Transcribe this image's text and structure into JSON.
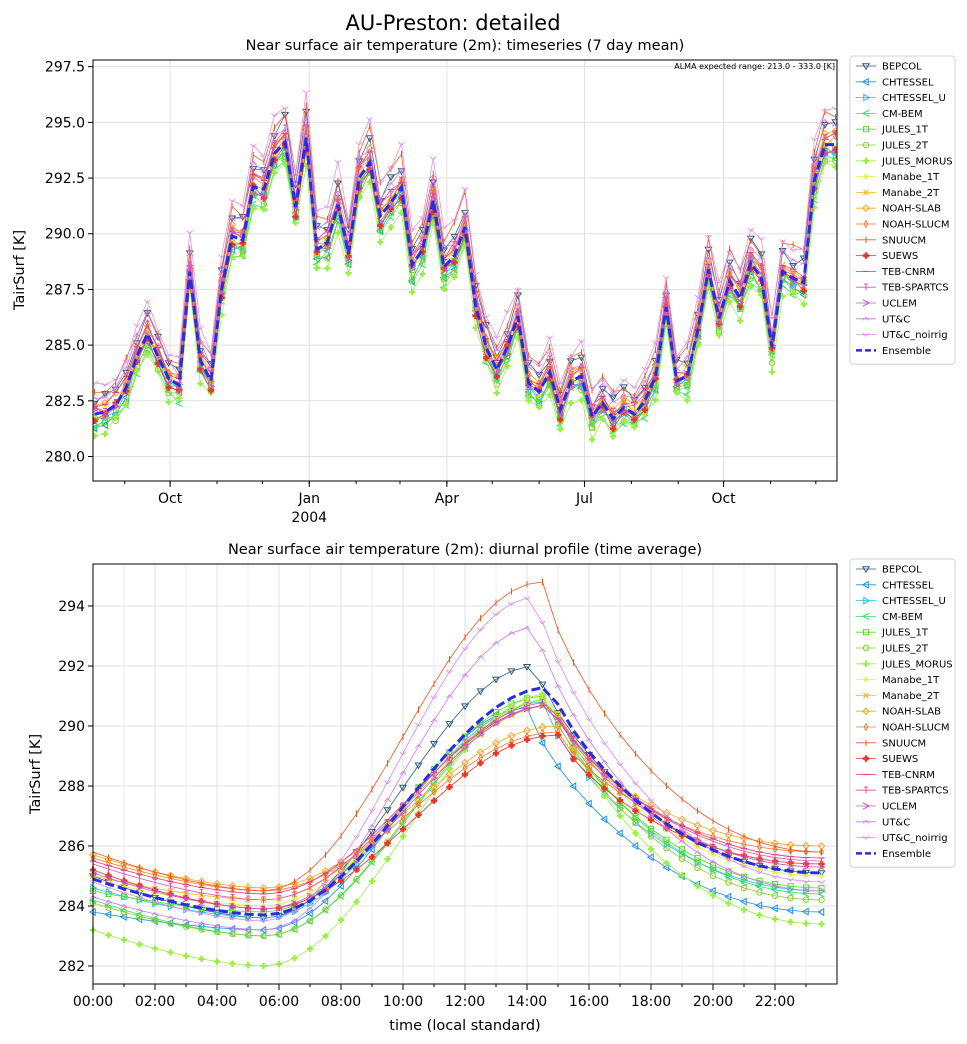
{
  "figure": {
    "suptitle": "AU-Preston: detailed",
    "annotation": "ALMA expected range: 213.0 - 333.0 [K]"
  },
  "models": [
    {
      "name": "BEPCOL",
      "color": "#2d5a7e",
      "marker": "tri_down"
    },
    {
      "name": "CHTESSEL",
      "color": "#1f8fe6",
      "marker": "tri_left"
    },
    {
      "name": "CHTESSEL_U",
      "color": "#22c0e8",
      "marker": "tri_right"
    },
    {
      "name": "CM-BEM",
      "color": "#33dd66",
      "marker": "lt"
    },
    {
      "name": "JULES_1T",
      "color": "#55dd22",
      "marker": "square"
    },
    {
      "name": "JULES_2T",
      "color": "#88cc33",
      "marker": "circle"
    },
    {
      "name": "JULES_MORUS",
      "color": "#99ee44",
      "marker": "pluscircle"
    },
    {
      "name": "Manabe_1T",
      "color": "#ddee44",
      "marker": "star"
    },
    {
      "name": "Manabe_2T",
      "color": "#f2b521",
      "marker": "x"
    },
    {
      "name": "NOAH-SLAB",
      "color": "#f5a623",
      "marker": "diamond"
    },
    {
      "name": "NOAH-SLUCM",
      "color": "#ef7d2e",
      "marker": "thindiamond"
    },
    {
      "name": "SNUUCM",
      "color": "#ee5522",
      "marker": "vline"
    },
    {
      "name": "SUEWS",
      "color": "#ee3322",
      "marker": "plusfilled"
    },
    {
      "name": "TEB-CNRM",
      "color": "#e8336e",
      "marker": "hline"
    },
    {
      "name": "TEB-SPARTCS",
      "color": "#d94fb0",
      "marker": "tick"
    },
    {
      "name": "UCLEM",
      "color": "#c455d6",
      "marker": "gt"
    },
    {
      "name": "UT&C",
      "color": "#cc77ee",
      "marker": "caret"
    },
    {
      "name": "UT&C_noirrig",
      "color": "#dd88ee",
      "marker": "caretdown"
    },
    {
      "name": "Ensemble",
      "color": "#2b2be0",
      "marker": "none"
    }
  ],
  "chart_data": [
    {
      "type": "line",
      "title": "Near surface air temperature (2m): timeseries (7 day mean)",
      "xlabel": "",
      "ylabel": "TairSurf [K]",
      "x_is_time": true,
      "x_range": [
        "2003-08-11",
        "2004-12-15"
      ],
      "x_major_ticks": [
        [
          "2003-10-01",
          "Oct"
        ],
        [
          "2004-01-01",
          "Jan"
        ],
        [
          "2004-04-01",
          "Apr"
        ],
        [
          "2004-07-01",
          "Jul"
        ],
        [
          "2004-10-01",
          "Oct"
        ]
      ],
      "x_year_label": {
        "date": "2004-01-01",
        "text": "2004"
      },
      "ylim": [
        278.9,
        297.8
      ],
      "yticks": [
        "280.0",
        "282.5",
        "285.0",
        "287.5",
        "290.0",
        "292.5",
        "295.0",
        "297.5"
      ],
      "grid": true,
      "legend": "right outside",
      "x": [
        "2003-08-12",
        "2003-08-19",
        "2003-08-26",
        "2003-09-02",
        "2003-09-09",
        "2003-09-16",
        "2003-09-23",
        "2003-09-30",
        "2003-10-07",
        "2003-10-14",
        "2003-10-21",
        "2003-10-28",
        "2003-11-04",
        "2003-11-11",
        "2003-11-18",
        "2003-11-25",
        "2003-12-02",
        "2003-12-09",
        "2003-12-16",
        "2003-12-23",
        "2003-12-30",
        "2004-01-06",
        "2004-01-13",
        "2004-01-20",
        "2004-01-27",
        "2004-02-03",
        "2004-02-10",
        "2004-02-17",
        "2004-02-24",
        "2004-03-02",
        "2004-03-09",
        "2004-03-16",
        "2004-03-23",
        "2004-03-30",
        "2004-04-06",
        "2004-04-13",
        "2004-04-20",
        "2004-04-27",
        "2004-05-04",
        "2004-05-11",
        "2004-05-18",
        "2004-05-25",
        "2004-06-01",
        "2004-06-08",
        "2004-06-15",
        "2004-06-22",
        "2004-06-29",
        "2004-07-06",
        "2004-07-13",
        "2004-07-20",
        "2004-07-27",
        "2004-08-03",
        "2004-08-10",
        "2004-08-17",
        "2004-08-24",
        "2004-08-31",
        "2004-09-07",
        "2004-09-14",
        "2004-09-21",
        "2004-09-28",
        "2004-10-05",
        "2004-10-12",
        "2004-10-19",
        "2004-10-26",
        "2004-11-02",
        "2004-11-09",
        "2004-11-16",
        "2004-11-23",
        "2004-11-30",
        "2004-12-07",
        "2004-12-14"
      ],
      "ensemble": [
        281.9,
        282.0,
        282.3,
        283.1,
        284.5,
        285.5,
        284.5,
        283.5,
        283.2,
        288.3,
        284.3,
        283.4,
        287.5,
        289.9,
        289.7,
        292.1,
        292.0,
        293.6,
        294.1,
        291.2,
        294.3,
        289.3,
        289.6,
        291.3,
        289.1,
        292.5,
        293.2,
        290.8,
        291.4,
        292.1,
        288.6,
        289.3,
        291.5,
        288.5,
        289.0,
        290.3,
        286.8,
        284.9,
        283.9,
        284.9,
        286.3,
        283.3,
        282.9,
        283.8,
        282.1,
        283.4,
        283.6,
        281.8,
        282.4,
        281.7,
        282.2,
        281.9,
        282.5,
        283.6,
        286.7,
        283.4,
        283.6,
        285.7,
        288.4,
        286.2,
        287.9,
        287.1,
        288.7,
        288.0,
        284.9,
        288.3,
        288.0,
        287.8,
        292.4,
        294.0,
        294.0
      ],
      "ensemble_note": "individual model curves follow the ensemble with per-model offsets",
      "series": [
        {
          "name": "BEPCOL",
          "offset": 0.8
        },
        {
          "name": "CHTESSEL",
          "offset": -0.4
        },
        {
          "name": "CHTESSEL_U",
          "offset": -0.2
        },
        {
          "name": "CM-BEM",
          "offset": -0.6
        },
        {
          "name": "JULES_1T",
          "offset": -0.3
        },
        {
          "name": "JULES_2T",
          "offset": -0.5
        },
        {
          "name": "JULES_MORUS",
          "offset": -0.9
        },
        {
          "name": "Manabe_1T",
          "offset": 0.0
        },
        {
          "name": "Manabe_2T",
          "offset": 0.1
        },
        {
          "name": "NOAH-SLAB",
          "offset": 0.3
        },
        {
          "name": "NOAH-SLUCM",
          "offset": 0.2
        },
        {
          "name": "SNUUCM",
          "offset": 1.2
        },
        {
          "name": "SUEWS",
          "offset": -0.2
        },
        {
          "name": "TEB-CNRM",
          "offset": 0.4
        },
        {
          "name": "TEB-SPARTCS",
          "offset": 0.3
        },
        {
          "name": "UCLEM",
          "offset": -0.1
        },
        {
          "name": "UT&C",
          "offset": 0.7
        },
        {
          "name": "UT&C_noirrig",
          "offset": 1.5
        }
      ]
    },
    {
      "type": "line",
      "title": "Near surface air temperature (2m): diurnal profile (time average)",
      "xlabel": "time (local standard)",
      "ylabel": "TairSurf [K]",
      "xlim": [
        0,
        24
      ],
      "xticks": [
        "00:00",
        "02:00",
        "04:00",
        "06:00",
        "08:00",
        "10:00",
        "12:00",
        "14:00",
        "16:00",
        "18:00",
        "20:00",
        "22:00"
      ],
      "ylim": [
        281.4,
        295.4
      ],
      "yticks": [
        "282",
        "284",
        "286",
        "288",
        "290",
        "292",
        "294"
      ],
      "grid": true,
      "legend": "right outside",
      "x_hours_step": 0.5,
      "series": [
        {
          "name": "BEPCOL",
          "start": 285.0,
          "min": 283.6,
          "max": 292.0,
          "peak_hour": 14.3,
          "end": 285.1
        },
        {
          "name": "CHTESSEL",
          "start": 283.8,
          "min": 283.2,
          "max": 290.6,
          "peak_hour": 14.0,
          "end": 283.8
        },
        {
          "name": "CHTESSEL_U",
          "start": 284.6,
          "min": 283.6,
          "max": 290.8,
          "peak_hour": 14.5,
          "end": 284.5
        },
        {
          "name": "CM-BEM",
          "start": 284.2,
          "min": 283.0,
          "max": 290.9,
          "peak_hour": 14.8,
          "end": 284.4
        },
        {
          "name": "JULES_1T",
          "start": 284.5,
          "min": 283.8,
          "max": 291.0,
          "peak_hour": 14.6,
          "end": 284.6
        },
        {
          "name": "JULES_2T",
          "start": 284.1,
          "min": 283.0,
          "max": 290.9,
          "peak_hour": 14.7,
          "end": 284.2
        },
        {
          "name": "JULES_MORUS",
          "start": 283.2,
          "min": 282.0,
          "max": 291.1,
          "peak_hour": 14.8,
          "end": 283.4
        },
        {
          "name": "Manabe_1T",
          "start": 284.9,
          "min": 284.0,
          "max": 290.9,
          "peak_hour": 14.8,
          "end": 285.0
        },
        {
          "name": "Manabe_2T",
          "start": 285.0,
          "min": 284.2,
          "max": 290.7,
          "peak_hour": 14.9,
          "end": 285.3
        },
        {
          "name": "NOAH-SLAB",
          "start": 285.7,
          "min": 284.6,
          "max": 290.0,
          "peak_hour": 15.0,
          "end": 286.0
        },
        {
          "name": "NOAH-SLUCM",
          "start": 285.6,
          "min": 284.5,
          "max": 289.8,
          "peak_hour": 15.0,
          "end": 285.8
        },
        {
          "name": "SNUUCM",
          "start": 285.8,
          "min": 284.5,
          "max": 294.8,
          "peak_hour": 14.5,
          "end": 285.8
        },
        {
          "name": "SUEWS",
          "start": 285.2,
          "min": 283.9,
          "max": 289.7,
          "peak_hour": 15.0,
          "end": 285.4
        },
        {
          "name": "TEB-CNRM",
          "start": 285.5,
          "min": 284.4,
          "max": 290.7,
          "peak_hour": 14.8,
          "end": 285.6
        },
        {
          "name": "TEB-SPARTCS",
          "start": 285.4,
          "min": 284.2,
          "max": 290.8,
          "peak_hour": 14.8,
          "end": 285.5
        },
        {
          "name": "UCLEM",
          "start": 285.1,
          "min": 283.9,
          "max": 290.7,
          "peak_hour": 14.8,
          "end": 285.3
        },
        {
          "name": "UT&C",
          "start": 284.3,
          "min": 283.2,
          "max": 293.3,
          "peak_hour": 14.3,
          "end": 284.5
        },
        {
          "name": "UT&C_noirrig",
          "start": 284.8,
          "min": 283.5,
          "max": 294.3,
          "peak_hour": 14.3,
          "end": 284.8
        },
        {
          "name": "Ensemble",
          "start": 284.9,
          "min": 283.7,
          "max": 291.3,
          "peak_hour": 14.8,
          "end": 285.1
        }
      ]
    }
  ]
}
